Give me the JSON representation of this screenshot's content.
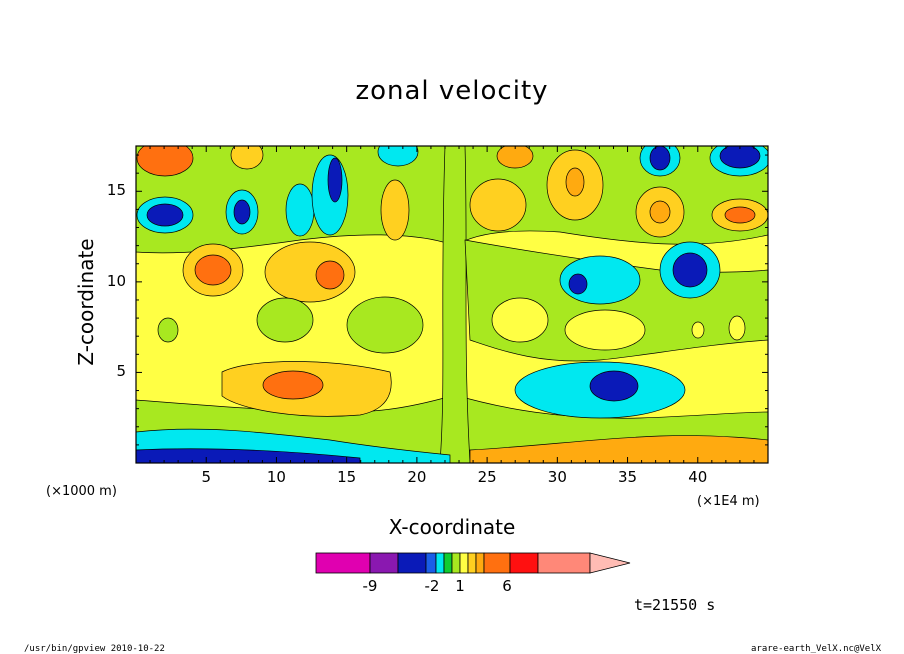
{
  "chart_data": {
    "type": "heatmap",
    "title": "zonal velocity",
    "xlabel": "X-coordinate",
    "ylabel": "Z-coordinate",
    "x_unit_left": "(×1000 m)",
    "x_unit_right": "(×1E4 m)",
    "xlim": [
      0,
      45
    ],
    "ylim": [
      0,
      17.5
    ],
    "x_ticks": [
      "5",
      "10",
      "15",
      "20",
      "25",
      "30",
      "35",
      "40"
    ],
    "y_ticks": [
      "5",
      "10",
      "15"
    ],
    "colorbar": {
      "labels": [
        "-9",
        "-2",
        "1",
        "6"
      ],
      "colors": [
        "#e000b0",
        "#8a18b0",
        "#0a1ab8",
        "#1a5ee8",
        "#00e8f0",
        "#10cc30",
        "#a8e820",
        "#ffff44",
        "#ffd020",
        "#ffaa10",
        "#ff7010",
        "#ff1010",
        "#ff8878",
        "#ffbcb4"
      ]
    },
    "levels": [
      -9,
      -2,
      1,
      6
    ],
    "annotation_time": "t=21550 s"
  },
  "footer": {
    "left": "/usr/bin/gpview  2010-10-22",
    "right": "arare-earth_VelX.nc@VelX"
  }
}
